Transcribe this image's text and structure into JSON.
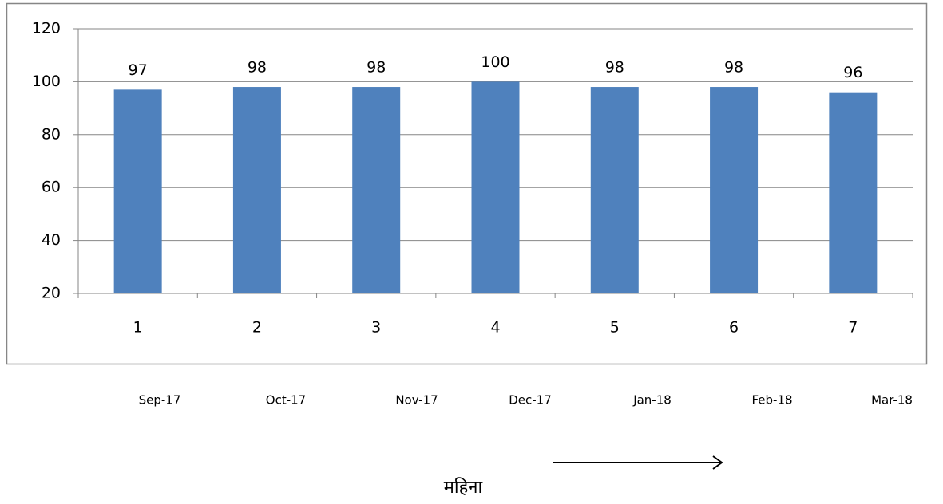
{
  "chart_data": {
    "type": "bar",
    "categories": [
      "1",
      "2",
      "3",
      "4",
      "5",
      "6",
      "7"
    ],
    "values": [
      97,
      98,
      98,
      100,
      98,
      98,
      96
    ],
    "color": "#4f81bd",
    "ylim": [
      20,
      120
    ],
    "yticks": [
      20,
      40,
      60,
      80,
      100,
      120
    ],
    "grid": true,
    "month_labels": [
      "Sep-17",
      "Oct-17",
      "Nov-17",
      "Dec-17",
      "Jan-18",
      "Feb-18",
      "Mar-18"
    ],
    "x_label": "महिना"
  }
}
